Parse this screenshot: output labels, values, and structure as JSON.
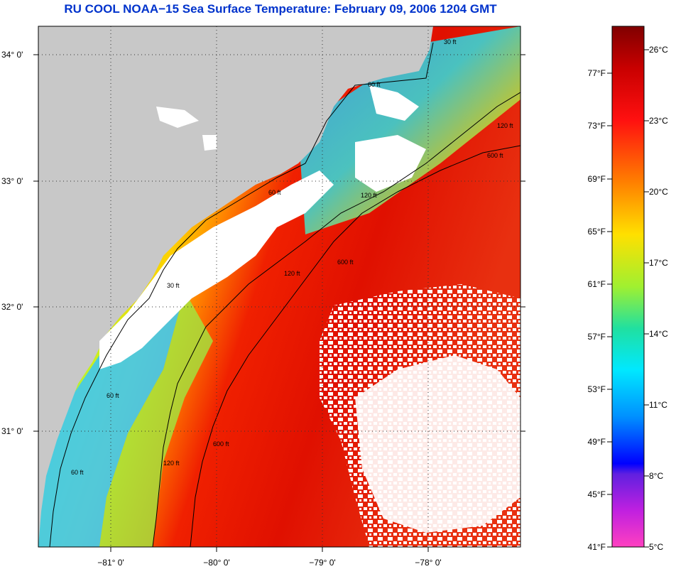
{
  "title": "RU COOL  NOAA−15  Sea Surface Temperature:  February 09, 2006 1204 GMT",
  "map": {
    "lat_labels": [
      {
        "label": "34° 0'",
        "lat": 34.0
      },
      {
        "label": "33° 0'",
        "lat": 33.0
      },
      {
        "label": "32° 0'",
        "lat": 32.0
      },
      {
        "label": "31° 0'",
        "lat": 31.0
      }
    ],
    "lon_labels": [
      {
        "label": "−81° 0'",
        "lon": -81.0
      },
      {
        "label": "−80° 0'",
        "lon": -80.0
      },
      {
        "label": "−79° 0'",
        "lon": -79.0
      },
      {
        "label": "−78° 0'",
        "lon": -78.0
      }
    ],
    "contour_labels": [
      "30 ft",
      "60 ft",
      "120 ft",
      "600 ft"
    ],
    "colors": {
      "land": "#c8c8c8",
      "cloud": "#ffffff",
      "sst_cold": "#00e0ff",
      "sst_mid": "#f0e000",
      "sst_warm": "#e00000"
    }
  },
  "colorbar": {
    "fahrenheit": [
      "77°F",
      "73°F",
      "69°F",
      "65°F",
      "61°F",
      "57°F",
      "53°F",
      "49°F",
      "45°F",
      "41°F"
    ],
    "celsius": [
      "26°C",
      "23°C",
      "20°C",
      "17°C",
      "14°C",
      "11°C",
      "8°C",
      "5°C"
    ]
  }
}
